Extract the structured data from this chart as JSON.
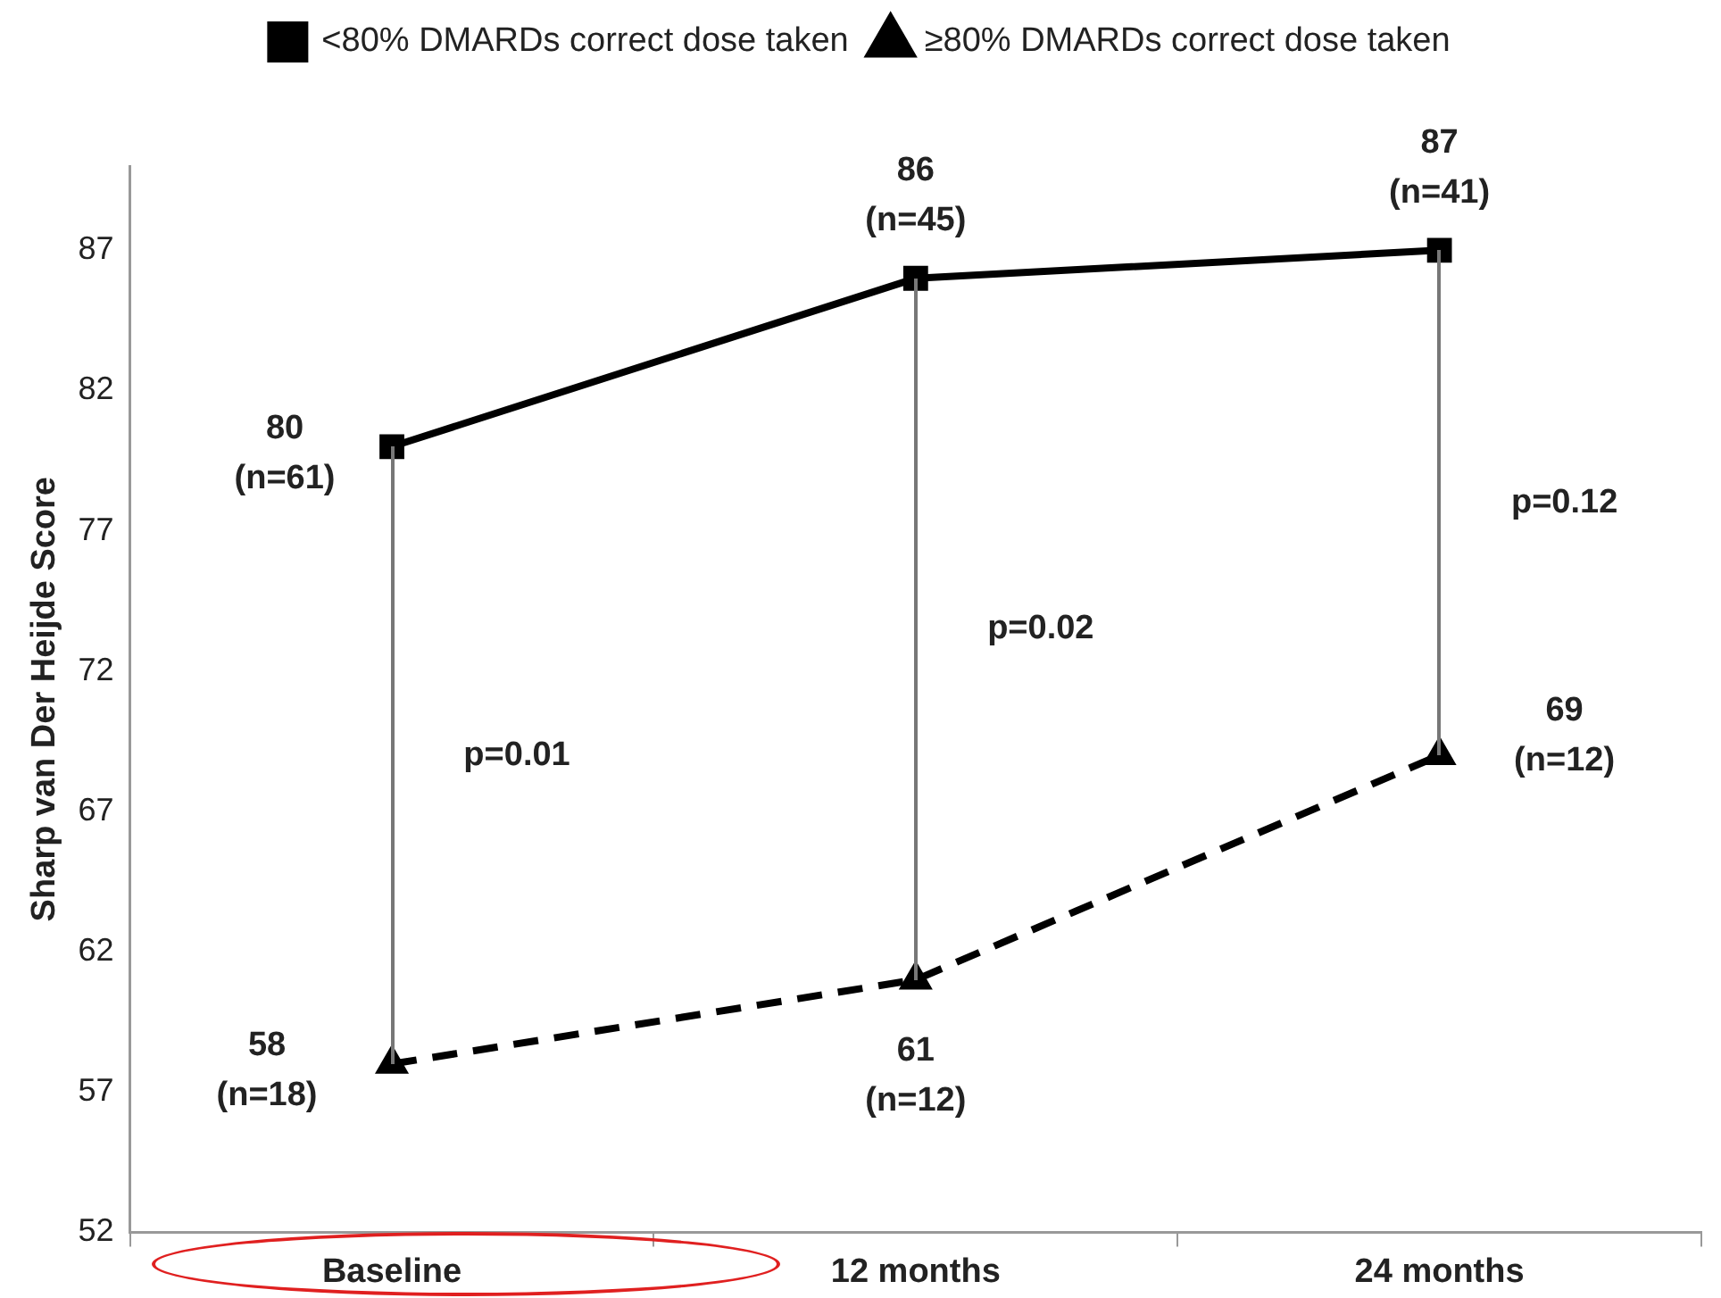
{
  "chart_data": {
    "type": "line",
    "ylabel": "Sharp van Der Heijde Score",
    "categories": [
      "Baseline",
      "12 months",
      "24 months"
    ],
    "series": [
      {
        "name": "<80% DMARDs correct dose taken",
        "color": "#000000",
        "values": [
          80,
          86,
          87
        ],
        "marker": "square",
        "line_style": "solid",
        "value_labels": [
          "80\n(n=61)",
          "86\n(n=45)",
          "87\n(n=41)"
        ]
      },
      {
        "name": "≥80% DMARDs correct dose taken",
        "color": "#000000",
        "values": [
          58,
          61,
          69
        ],
        "marker": "triangle",
        "line_style": "dashed",
        "value_labels": [
          "58\n(n=18)",
          "61\n(n=12)",
          "69\n(n=12)"
        ]
      }
    ],
    "ylim": [
      52,
      90
    ],
    "yticks": [
      52,
      57,
      62,
      67,
      72,
      77,
      82,
      87
    ],
    "grid": false,
    "legend": "top",
    "annotations": [
      "p=0.01",
      "p=0.02",
      "p=0.12"
    ]
  }
}
